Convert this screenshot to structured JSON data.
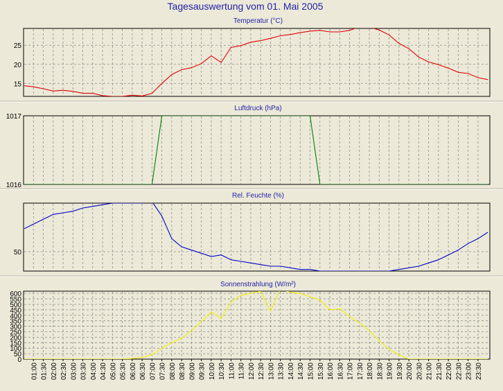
{
  "window": {
    "title": "Tagesauswertung vom 01. Mai 2005"
  },
  "x_tick_labels": [
    "01:00",
    "01:30",
    "02:00",
    "02:30",
    "03:00",
    "03:30",
    "04:00",
    "04:30",
    "05:00",
    "05:30",
    "06:00",
    "06:30",
    "07:00",
    "07:30",
    "08:00",
    "08:30",
    "09:00",
    "09:30",
    "10:00",
    "10:30",
    "11:00",
    "11:30",
    "12:00",
    "12:30",
    "13:00",
    "13:30",
    "14:00",
    "14:30",
    "15:00",
    "15:30",
    "16:00",
    "16:30",
    "17:00",
    "17:30",
    "18:00",
    "18:30",
    "19:00",
    "19:30",
    "20:00",
    "20:30",
    "21:00",
    "21:30",
    "22:00",
    "22:30",
    "23:00",
    "23:30"
  ],
  "colors": {
    "temperature": "#e00000",
    "pressure": "#008000",
    "humidity": "#0000c8",
    "radiation": "#f0f000",
    "title": "#1f1fa8"
  },
  "chart_data": [
    {
      "type": "line",
      "title": "Temperatur (°C)",
      "series": [
        {
          "color": "#e00000",
          "x": [
            0.5,
            1,
            1.5,
            2,
            2.5,
            3,
            3.5,
            4,
            4.5,
            5,
            5.5,
            6,
            6.5,
            7,
            7.5,
            8,
            8.5,
            9,
            9.5,
            10,
            10.5,
            11,
            11.5,
            12,
            12.5,
            13,
            13.5,
            14,
            14.5,
            15,
            15.5,
            16,
            16.5,
            17,
            17.5,
            18,
            18.5,
            19,
            19.5,
            20,
            20.5,
            21,
            21.5,
            22,
            22.5,
            23,
            23.5,
            24
          ],
          "y": [
            14.4,
            14.1,
            13.6,
            13.0,
            13.2,
            12.9,
            12.4,
            12.4,
            11.8,
            11.6,
            11.6,
            11.9,
            11.7,
            12.4,
            15.0,
            17.3,
            18.6,
            19.1,
            20.2,
            22.2,
            20.5,
            24.4,
            24.9,
            25.8,
            26.2,
            26.8,
            27.5,
            27.8,
            28.3,
            28.7,
            28.9,
            28.5,
            28.5,
            28.9,
            29.8,
            29.7,
            29.0,
            27.7,
            25.5,
            24.1,
            21.9,
            20.6,
            19.9,
            19.0,
            17.9,
            17.6,
            16.5,
            16.0
          ]
        }
      ],
      "yticks": [
        15,
        20,
        25
      ],
      "ylim": [
        11.6,
        29.4
      ],
      "xlim": [
        0.5,
        24.1
      ],
      "grid": true
    },
    {
      "type": "line",
      "title": "Luftdruck (hPa)",
      "series": [
        {
          "color": "#008000",
          "x": [
            0.5,
            6.5,
            7,
            7.5,
            8,
            8.5,
            9,
            9.5,
            10,
            10.5,
            11,
            11.5,
            12,
            12.5,
            13,
            13.5,
            14,
            14.5,
            15,
            15.5,
            16,
            24
          ],
          "y": [
            1016,
            1016,
            1016,
            1017,
            1017,
            1017,
            1017,
            1017,
            1017,
            1017,
            1017,
            1017,
            1017,
            1017,
            1017,
            1017,
            1017,
            1017,
            1017,
            1016,
            1016,
            1016
          ]
        }
      ],
      "yticks": [
        1016,
        1017
      ],
      "ylim": [
        1016,
        1017
      ],
      "xlim": [
        0.5,
        24.1
      ],
      "grid": true
    },
    {
      "type": "line",
      "title": "Rel. Feuchte (%)",
      "series": [
        {
          "color": "#0000c8",
          "x": [
            0.5,
            1,
            1.5,
            2,
            2.5,
            3,
            3.5,
            4,
            4.5,
            5,
            5.5,
            6,
            6.5,
            7,
            7.5,
            8,
            8.5,
            9,
            9.5,
            10,
            10.5,
            11,
            11.5,
            12,
            12.5,
            13,
            13.5,
            14,
            14.5,
            15,
            15.5,
            16,
            16.5,
            17,
            17.5,
            18,
            18.5,
            19,
            19.5,
            20,
            20.5,
            21,
            21.5,
            22,
            22.5,
            23,
            23.5,
            24
          ],
          "y": [
            64,
            67,
            70,
            73,
            74,
            75,
            77,
            78,
            79,
            80,
            80,
            80,
            80,
            81,
            72,
            58,
            53,
            51,
            49,
            47,
            48,
            45,
            44,
            43,
            42,
            41,
            41,
            40,
            39,
            39,
            38,
            38,
            38,
            38,
            38,
            38,
            38,
            38,
            39,
            40,
            41,
            43,
            45,
            48,
            51,
            55,
            58,
            62
          ]
        }
      ],
      "yticks": [
        50
      ],
      "ylim": [
        38,
        80
      ],
      "xlim": [
        0.5,
        24.1
      ],
      "grid": true
    },
    {
      "type": "line",
      "title": "Sonnenstrahlung (W/m²)",
      "series": [
        {
          "color": "#f0f000",
          "x": [
            0.5,
            4.5,
            5,
            5.5,
            6,
            6.5,
            7,
            7.5,
            8,
            8.5,
            9,
            9.5,
            10,
            10.5,
            11,
            11.5,
            12,
            12.5,
            13,
            13.5,
            14,
            14.5,
            15,
            15.5,
            16,
            16.5,
            17,
            17.5,
            18,
            18.5,
            19,
            19.5,
            20,
            20.5,
            24
          ],
          "y": [
            0,
            0,
            0,
            0,
            5,
            15,
            40,
            100,
            150,
            190,
            260,
            340,
            430,
            370,
            520,
            580,
            600,
            620,
            440,
            640,
            610,
            600,
            570,
            540,
            450,
            460,
            390,
            330,
            260,
            170,
            90,
            40,
            0,
            0,
            0
          ]
        }
      ],
      "yticks": [
        0,
        50,
        100,
        150,
        200,
        250,
        300,
        350,
        400,
        450,
        500,
        550,
        600
      ],
      "ylim": [
        0,
        620
      ],
      "xlim": [
        0.5,
        24.1
      ],
      "grid": true
    }
  ]
}
